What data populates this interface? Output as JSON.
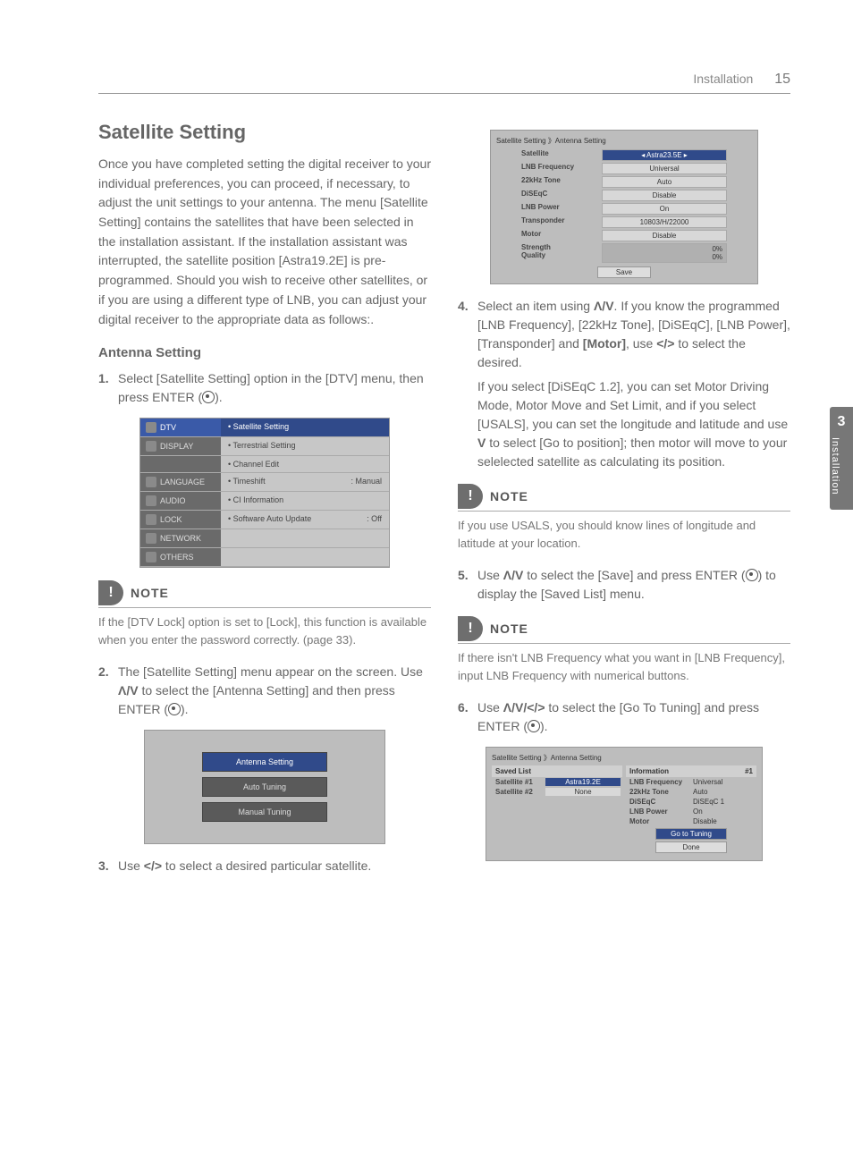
{
  "header": {
    "section": "Installation",
    "page": "15"
  },
  "sideTab": {
    "num": "3",
    "label": "Installation"
  },
  "left": {
    "h1": "Satellite Setting",
    "intro": "Once you have completed setting the digital receiver to your individual preferences, you can proceed, if necessary, to adjust the unit settings to your antenna. The menu [Satellite Setting] contains the satellites that have been selected in the installation assistant. If the installation assistant was interrupted, the satellite position [Astra19.2E] is pre-programmed. Should you wish to receive other satellites, or if you are using a different type of LNB, you can adjust your digital receiver to the appropriate data as follows:.",
    "h2": "Antenna Setting",
    "step1a": "Select [Satellite Setting] option in the [DTV] menu, then press ENTER (",
    "step1b": ").",
    "note1": "If the [DTV Lock] option is set to [Lock], this function is available when you enter the password correctly. (page 33).",
    "step2a": "The [Satellite Setting] menu appear on the screen. Use ",
    "step2b": " to select the [Antenna Setting] and then press ENTER (",
    "step2c": ").",
    "step3a": "Use ",
    "step3b": " to select a desired particular satellite."
  },
  "right": {
    "step4a": "Select an item using ",
    "step4b": ". If you know the programmed [LNB Frequency], [22kHz Tone], [DiSEqC], [LNB Power], [Transponder] and ",
    "step4motor": "[Motor]",
    "step4c": ", use ",
    "step4d": " to select the desired.",
    "step4para2a": "If you select [DiSEqC 1.2], you can set Motor Driving Mode, Motor Move and Set Limit, and if you select [USALS], you can set the longitude and latitude and use ",
    "step4para2b": " to select [Go to position]; then motor will move to your selelected satellite as calculating its position.",
    "note2": "If you use USALS, you should know lines of longitude and latitude at your location.",
    "step5a": "Use ",
    "step5b": " to select the [Save] and press ENTER (",
    "step5c": ") to display the [Saved List] menu.",
    "note3": "If there isn't LNB Frequency what you want in [LNB Frequency], input LNB Frequency with numerical buttons.",
    "step6a": "Use ",
    "step6b": " to select the [Go To Tuning] and press ENTER (",
    "step6c": ")."
  },
  "glyphs": {
    "ud": "Λ/V",
    "lr": "</>",
    "udlr": "Λ/V/</>",
    "v": "V"
  },
  "noteLabel": "NOTE",
  "shot1": {
    "rows": [
      {
        "side": "DTV",
        "main": "• Satellite Setting",
        "hl": true
      },
      {
        "side": "DISPLAY",
        "main": "• Terrestrial Setting"
      },
      {
        "side": "",
        "main": "• Channel Edit"
      },
      {
        "side": "LANGUAGE",
        "main": "• Timeshift",
        "r": ": Manual"
      },
      {
        "side": "AUDIO",
        "main": "• CI Information"
      },
      {
        "side": "LOCK",
        "main": "• Software Auto Update",
        "r": ": Off"
      },
      {
        "side": "NETWORK",
        "main": ""
      },
      {
        "side": "OTHERS",
        "main": ""
      }
    ]
  },
  "shot2": {
    "btns": [
      {
        "t": "Antenna Setting",
        "hl": true
      },
      {
        "t": "Auto Tuning"
      },
      {
        "t": "Manual Tuning"
      }
    ]
  },
  "shot3": {
    "crumb": "Satellite Setting 》Antenna Setting",
    "rows": [
      {
        "l": "Satellite",
        "v": "Astra23.5E",
        "hl": true,
        "arrows": true
      },
      {
        "l": "LNB Frequency",
        "v": "Universal"
      },
      {
        "l": "22kHz Tone",
        "v": "Auto"
      },
      {
        "l": "DiSEqC",
        "v": "Disable"
      },
      {
        "l": "LNB Power",
        "v": "On"
      },
      {
        "l": "Transponder",
        "v": "10803/H/22000"
      },
      {
        "l": "Motor",
        "v": "Disable"
      }
    ],
    "strength": "Strength",
    "quality": "Quality",
    "pct": "0%",
    "save": "Save"
  },
  "shot4": {
    "crumb": "Satellite Setting 》Antenna Setting",
    "leftHd": "Saved List",
    "rightHd": "Information",
    "rightHdR": "#1",
    "leftRows": [
      {
        "a": "Satellite #1",
        "b": "Astra19.2E",
        "hl": true
      },
      {
        "a": "Satellite #2",
        "b": "None"
      }
    ],
    "rightRows": [
      {
        "a": "LNB Frequency",
        "b": "Universal"
      },
      {
        "a": "22kHz Tone",
        "b": "Auto"
      },
      {
        "a": "DiSEqC",
        "b": "DiSEqC 1"
      },
      {
        "a": "LNB Power",
        "b": "On"
      },
      {
        "a": "Motor",
        "b": "Disable"
      }
    ],
    "go": "Go to Tuning",
    "done": "Done"
  }
}
